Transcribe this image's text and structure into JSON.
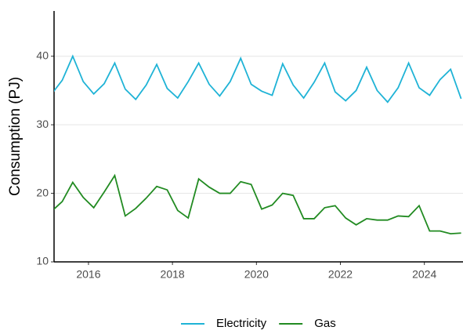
{
  "chart_data": {
    "type": "line",
    "y_label": "Consumption (PJ)",
    "x": [
      2015.125,
      2015.375,
      2015.625,
      2015.875,
      2016.125,
      2016.375,
      2016.625,
      2016.875,
      2017.125,
      2017.375,
      2017.625,
      2017.875,
      2018.125,
      2018.375,
      2018.625,
      2018.875,
      2019.125,
      2019.375,
      2019.625,
      2019.875,
      2020.125,
      2020.375,
      2020.625,
      2020.875,
      2021.125,
      2021.375,
      2021.625,
      2021.875,
      2022.125,
      2022.375,
      2022.625,
      2022.875,
      2023.125,
      2023.375,
      2023.625,
      2023.875,
      2024.125,
      2024.375,
      2024.625,
      2024.875
    ],
    "series": [
      {
        "name": "Electricity",
        "color": "#1fb3d6",
        "values": [
          34.5,
          36.5,
          40.0,
          36.3,
          34.5,
          36.0,
          39.0,
          35.2,
          33.7,
          35.8,
          38.8,
          35.3,
          33.9,
          36.3,
          39.0,
          35.9,
          34.2,
          36.3,
          39.7,
          35.9,
          34.9,
          34.3,
          38.9,
          35.8,
          33.9,
          36.2,
          39.0,
          34.8,
          33.5,
          35.0,
          38.4,
          35.0,
          33.3,
          35.4,
          39.0,
          35.4,
          34.3,
          36.6,
          38.1,
          33.8
        ]
      },
      {
        "name": "Gas",
        "color": "#228b22",
        "values": [
          17.4,
          18.8,
          21.6,
          19.4,
          17.9,
          20.2,
          22.6,
          16.7,
          17.8,
          19.3,
          21.0,
          20.5,
          17.5,
          16.4,
          22.1,
          20.9,
          20.0,
          20.0,
          21.7,
          21.3,
          17.7,
          18.3,
          20.0,
          19.7,
          16.3,
          16.3,
          17.9,
          18.2,
          16.4,
          15.4,
          16.3,
          16.1,
          16.1,
          16.7,
          16.6,
          18.2,
          14.5,
          14.5,
          14.1,
          14.2
        ]
      }
    ],
    "xlim": [
      2015.18,
      2024.92
    ],
    "xticks": [
      2016,
      2018,
      2020,
      2022,
      2024
    ],
    "ylim": [
      10,
      46.6
    ],
    "yticks": [
      10,
      20,
      30,
      40
    ],
    "grid": true,
    "legend": "bottom"
  }
}
